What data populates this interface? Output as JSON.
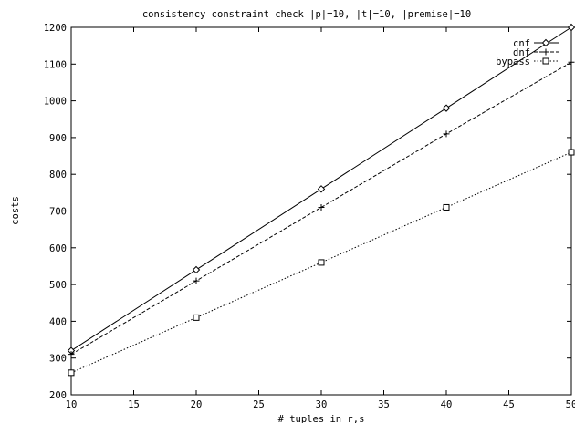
{
  "chart_data": {
    "type": "line",
    "title": "consistency constraint check |p|=10, |t|=10, |premise|=10",
    "xlabel": "# tuples in r,s",
    "ylabel": "costs",
    "xlim": [
      10,
      50
    ],
    "ylim": [
      200,
      1200
    ],
    "x_ticks": [
      10,
      15,
      20,
      25,
      30,
      35,
      40,
      45,
      50
    ],
    "y_ticks": [
      200,
      300,
      400,
      500,
      600,
      700,
      800,
      900,
      1000,
      1100,
      1200
    ],
    "grid": false,
    "legend_position": "top-right",
    "x": [
      10,
      20,
      30,
      40,
      50
    ],
    "series": [
      {
        "name": "cnf",
        "marker": "diamond",
        "line_style": "solid",
        "values": [
          320,
          540,
          760,
          980,
          1200
        ]
      },
      {
        "name": "dnf",
        "marker": "plus",
        "line_style": "dashed",
        "values": [
          310,
          510,
          710,
          910,
          1105
        ]
      },
      {
        "name": "bypass",
        "marker": "square",
        "line_style": "dotted",
        "values": [
          260,
          410,
          560,
          710,
          860
        ]
      }
    ],
    "colors": {
      "line": "#000000",
      "background": "#ffffff"
    }
  }
}
